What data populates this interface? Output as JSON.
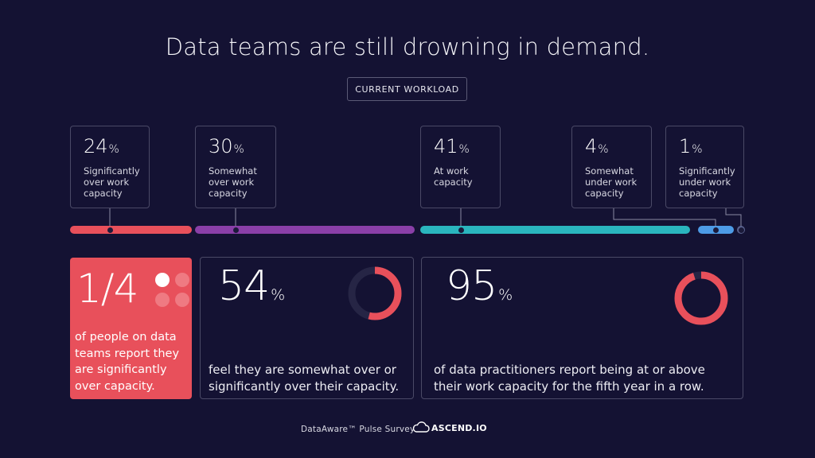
{
  "title": "Data teams are still drowning in demand.",
  "section_label": "CURRENT WORKLOAD",
  "chart_data": {
    "type": "bar",
    "subtype": "stacked-proportion",
    "title": "CURRENT WORKLOAD",
    "unit": "%",
    "categories": [
      "Significantly over work capacity",
      "Somewhat over work capacity",
      "At work capacity",
      "Somewhat under work capacity",
      "Significantly under work capacity"
    ],
    "values": [
      24,
      30,
      41,
      4,
      1
    ],
    "colors": [
      "#e8505b",
      "#8a3fa8",
      "#2ab5be",
      "#4d9be6",
      "#5b6490"
    ]
  },
  "segments": [
    {
      "value": "24",
      "unit": "%",
      "label": "Significantly over work capacity",
      "color": "#e8505b"
    },
    {
      "value": "30",
      "unit": "%",
      "label": "Somewhat over work capacity",
      "color": "#8a3fa8"
    },
    {
      "value": "41",
      "unit": "%",
      "label": "At work capacity",
      "color": "#2ab5be"
    },
    {
      "value": "4",
      "unit": "%",
      "label": "Somewhat under work capacity",
      "color": "#4d9be6"
    },
    {
      "value": "1",
      "unit": "%",
      "label": "Significantly under work capacity",
      "color": "#5b6490"
    }
  ],
  "stats": [
    {
      "value": "1/4",
      "unit": "",
      "text": "of people on data teams report they are significantly over capacity.",
      "highlight_dots": 1,
      "total_dots": 4,
      "bg_color": "#e8505b"
    },
    {
      "value": "54",
      "unit": "%",
      "text": "feel they are somewhat over or significantly over their capacity.",
      "ring_fraction": 0.54,
      "ring_color": "#e8505b"
    },
    {
      "value": "95",
      "unit": "%",
      "text": "of data practitioners report being at or above their work capacity for the fifth year in a row.",
      "ring_fraction": 0.95,
      "ring_color": "#e8505b"
    }
  ],
  "footer": {
    "survey": "DataAware™ Pulse Survey",
    "brand": "ASCEND.IO"
  }
}
